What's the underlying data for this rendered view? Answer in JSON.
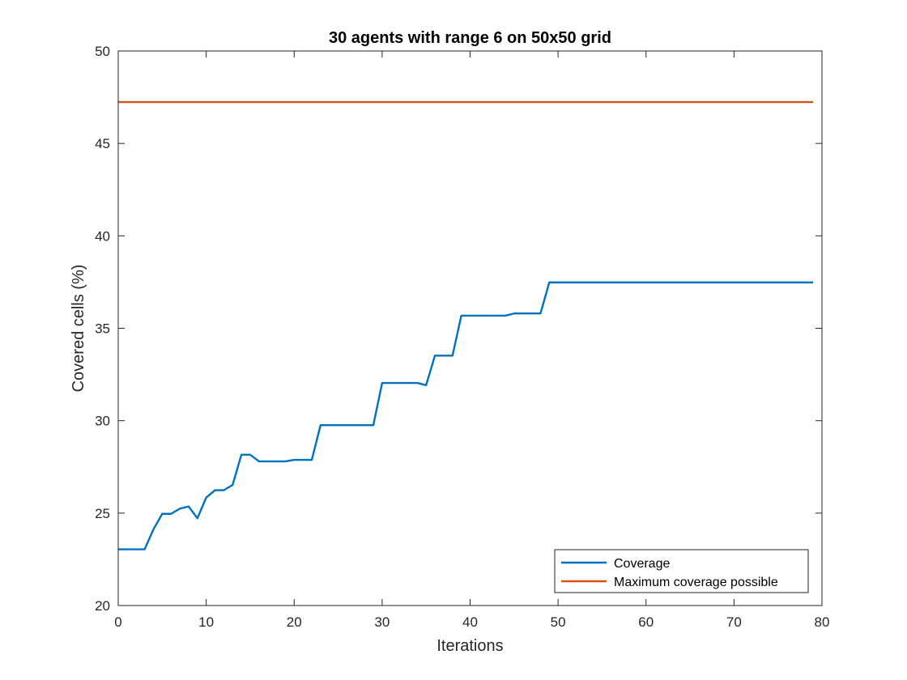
{
  "chart_data": {
    "type": "line",
    "title": "30 agents with range 6 on 50x50 grid",
    "xlabel": "Iterations",
    "ylabel": "Covered cells (%)",
    "xlim": [
      0,
      80
    ],
    "ylim": [
      20,
      50
    ],
    "xticks": [
      0,
      10,
      20,
      30,
      40,
      50,
      60,
      70,
      80
    ],
    "yticks": [
      20,
      25,
      30,
      35,
      40,
      45,
      50
    ],
    "grid": false,
    "legend_position": "bottom-right",
    "series": [
      {
        "name": "Coverage",
        "color": "#0072BD",
        "x": [
          0,
          1,
          2,
          3,
          4,
          5,
          6,
          7,
          8,
          9,
          10,
          11,
          12,
          13,
          14,
          15,
          16,
          17,
          18,
          19,
          20,
          21,
          22,
          23,
          24,
          25,
          26,
          27,
          28,
          29,
          30,
          31,
          32,
          33,
          34,
          35,
          36,
          37,
          38,
          39,
          40,
          41,
          42,
          43,
          44,
          45,
          46,
          47,
          48,
          49,
          50,
          51,
          52,
          53,
          54,
          55,
          56,
          57,
          58,
          59,
          60,
          61,
          62,
          63,
          64,
          65,
          66,
          67,
          68,
          69,
          70,
          71,
          72,
          73,
          74,
          75,
          76,
          77,
          78,
          79
        ],
        "y": [
          23.04,
          23.04,
          23.04,
          23.04,
          24.12,
          24.96,
          24.96,
          25.24,
          25.36,
          24.72,
          25.84,
          26.24,
          26.24,
          26.52,
          28.16,
          28.16,
          27.8,
          27.8,
          27.8,
          27.8,
          27.88,
          27.88,
          27.88,
          29.76,
          29.76,
          29.76,
          29.76,
          29.76,
          29.76,
          29.76,
          32.04,
          32.04,
          32.04,
          32.04,
          32.04,
          31.92,
          33.52,
          33.52,
          33.52,
          35.68,
          35.68,
          35.68,
          35.68,
          35.68,
          35.68,
          35.8,
          35.8,
          35.8,
          35.8,
          37.48,
          37.48,
          37.48,
          37.48,
          37.48,
          37.48,
          37.48,
          37.48,
          37.48,
          37.48,
          37.48,
          37.48,
          37.48,
          37.48,
          37.48,
          37.48,
          37.48,
          37.48,
          37.48,
          37.48,
          37.48,
          37.48,
          37.48,
          37.48,
          37.48,
          37.48,
          37.48,
          37.48,
          37.48,
          37.48,
          37.48
        ]
      },
      {
        "name": "Maximum coverage possible",
        "color": "#D95319",
        "x": [
          0,
          79
        ],
        "y": [
          47.24,
          47.24
        ]
      }
    ]
  }
}
